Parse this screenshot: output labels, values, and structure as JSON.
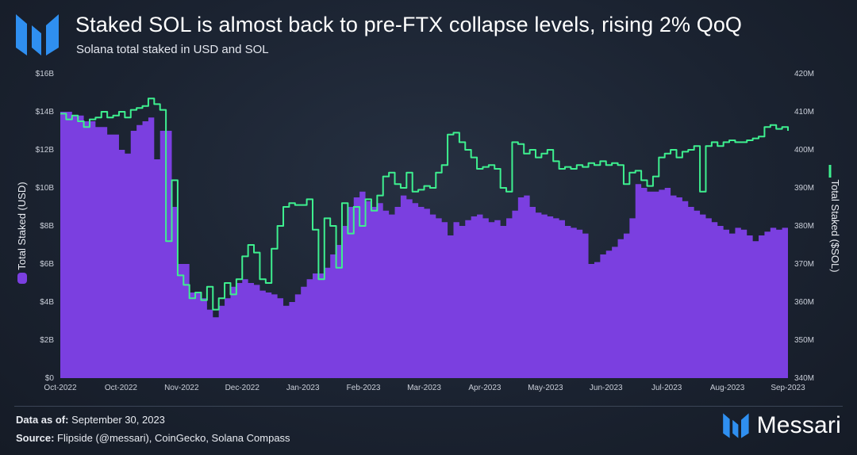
{
  "header": {
    "title": "Staked SOL is almost back to pre-FTX collapse levels, rising 2% QoQ",
    "subtitle": "Solana total staked in USD and SOL"
  },
  "footer": {
    "data_as_of_label": "Data as of:",
    "data_as_of_value": "September 30, 2023",
    "source_label": "Source:",
    "source_value": "Flipside (@messari), CoinGecko, Solana Compass"
  },
  "brand": {
    "name": "Messari",
    "icon": "messari-logo-icon"
  },
  "colors": {
    "usd_area": "#7b3fe0",
    "sol_line": "#3ef08f",
    "logo": "#2f8ff0"
  },
  "chart_data": {
    "type": "area",
    "x_tick_labels": [
      "Oct-2022",
      "Oct-2022",
      "Nov-2022",
      "Dec-2022",
      "Jan-2023",
      "Feb-2023",
      "Mar-2023",
      "Apr-2023",
      "May-2023",
      "Jun-2023",
      "Jul-2023",
      "Aug-2023",
      "Sep-2023"
    ],
    "y_left": {
      "label": "Total Staked (USD)",
      "ticks": [
        "$0",
        "$2B",
        "$4B",
        "$6B",
        "$8B",
        "$10B",
        "$12B",
        "$14B",
        "$16B"
      ],
      "range": [
        0,
        16
      ]
    },
    "y_right": {
      "label": "Total Staked ($SOL)",
      "ticks": [
        "340M",
        "350M",
        "360M",
        "370M",
        "380M",
        "390M",
        "400M",
        "410M",
        "420M"
      ],
      "range": [
        340,
        420
      ]
    },
    "grid": false,
    "series": [
      {
        "axis": "left",
        "style": "area",
        "points": [
          [
            0,
            14.0
          ],
          [
            2,
            13.8
          ],
          [
            4,
            13.5
          ],
          [
            6,
            13.2
          ],
          [
            8,
            12.8
          ],
          [
            10,
            12.0
          ],
          [
            11,
            11.8
          ],
          [
            12,
            13.0
          ],
          [
            13,
            13.3
          ],
          [
            14,
            13.5
          ],
          [
            15,
            13.7
          ],
          [
            16,
            11.5
          ],
          [
            17,
            13.0
          ],
          [
            18,
            13.0
          ],
          [
            19,
            9.0
          ],
          [
            20,
            6.0
          ],
          [
            22,
            4.5
          ],
          [
            24,
            4.2
          ],
          [
            25,
            3.6
          ],
          [
            26,
            3.2
          ],
          [
            27,
            3.8
          ],
          [
            28,
            4.2
          ],
          [
            29,
            4.8
          ],
          [
            30,
            5.0
          ],
          [
            31,
            5.2
          ],
          [
            32,
            5.0
          ],
          [
            33,
            4.9
          ],
          [
            34,
            4.6
          ],
          [
            35,
            4.5
          ],
          [
            36,
            4.4
          ],
          [
            37,
            4.2
          ],
          [
            38,
            3.8
          ],
          [
            39,
            4.0
          ],
          [
            40,
            4.4
          ],
          [
            41,
            4.8
          ],
          [
            42,
            5.2
          ],
          [
            43,
            5.5
          ],
          [
            44,
            5.5
          ],
          [
            45,
            5.8
          ],
          [
            46,
            6.5
          ],
          [
            47,
            7.0
          ],
          [
            48,
            8.0
          ],
          [
            49,
            9.0
          ],
          [
            50,
            9.5
          ],
          [
            51,
            9.8
          ],
          [
            52,
            9.3
          ],
          [
            53,
            9.0
          ],
          [
            54,
            9.2
          ],
          [
            55,
            8.8
          ],
          [
            56,
            8.6
          ],
          [
            57,
            9.0
          ],
          [
            58,
            9.6
          ],
          [
            59,
            9.4
          ],
          [
            60,
            9.2
          ],
          [
            61,
            9.0
          ],
          [
            62,
            8.9
          ],
          [
            63,
            8.6
          ],
          [
            64,
            8.4
          ],
          [
            65,
            8.2
          ],
          [
            66,
            7.5
          ],
          [
            67,
            8.2
          ],
          [
            68,
            8.0
          ],
          [
            69,
            8.3
          ],
          [
            70,
            8.5
          ],
          [
            71,
            8.6
          ],
          [
            72,
            8.4
          ],
          [
            73,
            8.2
          ],
          [
            74,
            8.3
          ],
          [
            75,
            8.0
          ],
          [
            76,
            8.4
          ],
          [
            77,
            8.8
          ],
          [
            78,
            9.5
          ],
          [
            79,
            9.6
          ],
          [
            80,
            9.0
          ],
          [
            81,
            8.7
          ],
          [
            82,
            8.6
          ],
          [
            83,
            8.5
          ],
          [
            84,
            8.4
          ],
          [
            85,
            8.3
          ],
          [
            86,
            8.0
          ],
          [
            87,
            7.9
          ],
          [
            88,
            7.8
          ],
          [
            89,
            7.6
          ],
          [
            90,
            6.0
          ],
          [
            91,
            6.1
          ],
          [
            92,
            6.5
          ],
          [
            93,
            6.7
          ],
          [
            94,
            6.9
          ],
          [
            95,
            7.3
          ],
          [
            96,
            7.6
          ],
          [
            97,
            8.4
          ],
          [
            98,
            10.2
          ],
          [
            99,
            10.0
          ],
          [
            100,
            9.8
          ],
          [
            101,
            9.8
          ],
          [
            102,
            9.9
          ],
          [
            103,
            10.0
          ],
          [
            104,
            9.6
          ],
          [
            105,
            9.5
          ],
          [
            106,
            9.3
          ],
          [
            107,
            9.0
          ],
          [
            108,
            8.8
          ],
          [
            109,
            8.6
          ],
          [
            110,
            8.4
          ],
          [
            111,
            8.2
          ],
          [
            112,
            8.0
          ],
          [
            113,
            7.8
          ],
          [
            114,
            7.6
          ],
          [
            115,
            7.9
          ],
          [
            116,
            7.8
          ],
          [
            117,
            7.5
          ],
          [
            118,
            7.2
          ],
          [
            119,
            7.5
          ],
          [
            120,
            7.7
          ],
          [
            121,
            7.9
          ],
          [
            122,
            7.8
          ],
          [
            123,
            7.9
          ],
          [
            124,
            8.2
          ]
        ]
      },
      {
        "axis": "right",
        "style": "line",
        "points": [
          [
            0,
            409.5
          ],
          [
            1,
            408
          ],
          [
            2,
            409
          ],
          [
            3,
            407.5
          ],
          [
            4,
            406
          ],
          [
            5,
            408
          ],
          [
            6,
            408.5
          ],
          [
            7,
            410
          ],
          [
            8,
            408.5
          ],
          [
            9,
            409
          ],
          [
            10,
            410
          ],
          [
            11,
            408.5
          ],
          [
            12,
            410.5
          ],
          [
            13,
            411
          ],
          [
            14,
            411.5
          ],
          [
            15,
            413.5
          ],
          [
            16,
            412
          ],
          [
            17,
            410.5
          ],
          [
            18,
            376
          ],
          [
            19,
            392
          ],
          [
            20,
            367
          ],
          [
            21,
            364.5
          ],
          [
            22,
            361
          ],
          [
            23,
            362.5
          ],
          [
            24,
            360.5
          ],
          [
            25,
            364
          ],
          [
            26,
            358
          ],
          [
            27,
            361
          ],
          [
            28,
            365
          ],
          [
            29,
            362
          ],
          [
            30,
            366
          ],
          [
            31,
            372
          ],
          [
            32,
            375
          ],
          [
            33,
            373
          ],
          [
            34,
            366
          ],
          [
            35,
            365
          ],
          [
            36,
            374
          ],
          [
            37,
            380
          ],
          [
            38,
            385
          ],
          [
            39,
            386
          ],
          [
            40,
            385.5
          ],
          [
            41,
            385.5
          ],
          [
            42,
            387
          ],
          [
            43,
            379
          ],
          [
            44,
            366
          ],
          [
            45,
            382
          ],
          [
            46,
            380
          ],
          [
            47,
            369
          ],
          [
            48,
            386
          ],
          [
            49,
            378
          ],
          [
            50,
            385
          ],
          [
            51,
            380
          ],
          [
            52,
            387
          ],
          [
            53,
            384
          ],
          [
            54,
            388
          ],
          [
            55,
            393
          ],
          [
            56,
            394
          ],
          [
            57,
            391
          ],
          [
            58,
            390
          ],
          [
            59,
            394
          ],
          [
            60,
            389
          ],
          [
            61,
            389.5
          ],
          [
            62,
            390.5
          ],
          [
            63,
            390
          ],
          [
            64,
            394
          ],
          [
            65,
            396
          ],
          [
            66,
            404
          ],
          [
            67,
            404.5
          ],
          [
            68,
            402
          ],
          [
            69,
            400
          ],
          [
            70,
            398
          ],
          [
            71,
            395
          ],
          [
            72,
            395.5
          ],
          [
            73,
            396
          ],
          [
            74,
            395
          ],
          [
            75,
            390
          ],
          [
            76,
            389
          ],
          [
            77,
            402
          ],
          [
            78,
            401.5
          ],
          [
            79,
            399
          ],
          [
            80,
            400
          ],
          [
            81,
            398
          ],
          [
            82,
            399
          ],
          [
            83,
            400
          ],
          [
            84,
            397
          ],
          [
            85,
            395
          ],
          [
            86,
            395.5
          ],
          [
            87,
            395
          ],
          [
            88,
            396
          ],
          [
            89,
            395.5
          ],
          [
            90,
            396.5
          ],
          [
            91,
            396
          ],
          [
            92,
            397
          ],
          [
            93,
            396
          ],
          [
            94,
            396.5
          ],
          [
            95,
            396
          ],
          [
            96,
            391
          ],
          [
            97,
            394
          ],
          [
            98,
            394.5
          ],
          [
            99,
            392
          ],
          [
            100,
            390.5
          ],
          [
            101,
            393
          ],
          [
            102,
            398
          ],
          [
            103,
            399
          ],
          [
            104,
            400
          ],
          [
            105,
            398
          ],
          [
            106,
            399.5
          ],
          [
            107,
            400
          ],
          [
            108,
            401
          ],
          [
            109,
            389
          ],
          [
            110,
            401
          ],
          [
            111,
            402
          ],
          [
            112,
            401
          ],
          [
            113,
            402
          ],
          [
            114,
            402.5
          ],
          [
            115,
            402
          ],
          [
            116,
            402
          ],
          [
            117,
            402.5
          ],
          [
            118,
            403
          ],
          [
            119,
            403.5
          ],
          [
            120,
            406
          ],
          [
            121,
            406.5
          ],
          [
            122,
            405.5
          ],
          [
            123,
            406
          ],
          [
            124,
            405
          ]
        ]
      }
    ]
  }
}
